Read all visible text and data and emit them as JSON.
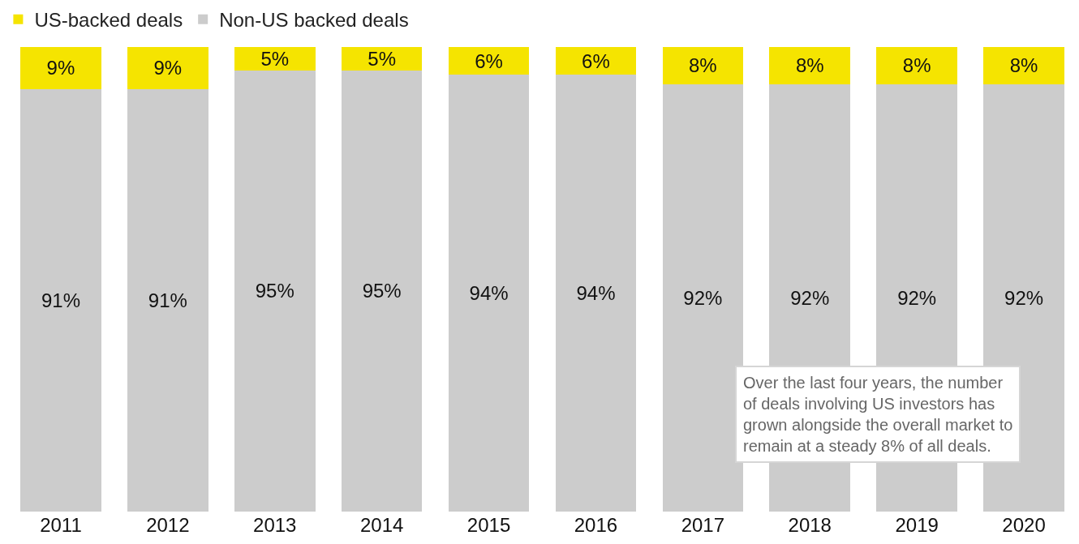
{
  "chart_data": {
    "type": "bar",
    "stacked": true,
    "categories": [
      "2011",
      "2012",
      "2013",
      "2014",
      "2015",
      "2016",
      "2017",
      "2018",
      "2019",
      "2020"
    ],
    "series": [
      {
        "name": "Non-US backed deals",
        "color": "#cccccc",
        "values": [
          91,
          91,
          95,
          95,
          94,
          94,
          92,
          92,
          92,
          92
        ],
        "value_labels": [
          "91%",
          "91%",
          "95%",
          "95%",
          "94%",
          "94%",
          "92%",
          "92%",
          "92%",
          "92%"
        ]
      },
      {
        "name": "US-backed deals",
        "color": "#f5e400",
        "values": [
          9,
          9,
          5,
          5,
          6,
          6,
          8,
          8,
          8,
          8
        ],
        "value_labels": [
          "9%",
          "9%",
          "5%",
          "5%",
          "6%",
          "6%",
          "8%",
          "8%",
          "8%",
          "8%"
        ]
      }
    ],
    "ylim": [
      0,
      100
    ],
    "tick_labels": "x",
    "grid": false,
    "legend": "top left",
    "annotations": [
      "Over the last four years, the number of deals involving US investors has grown alongside the overall market to remain at a steady 8% of all deals."
    ]
  }
}
